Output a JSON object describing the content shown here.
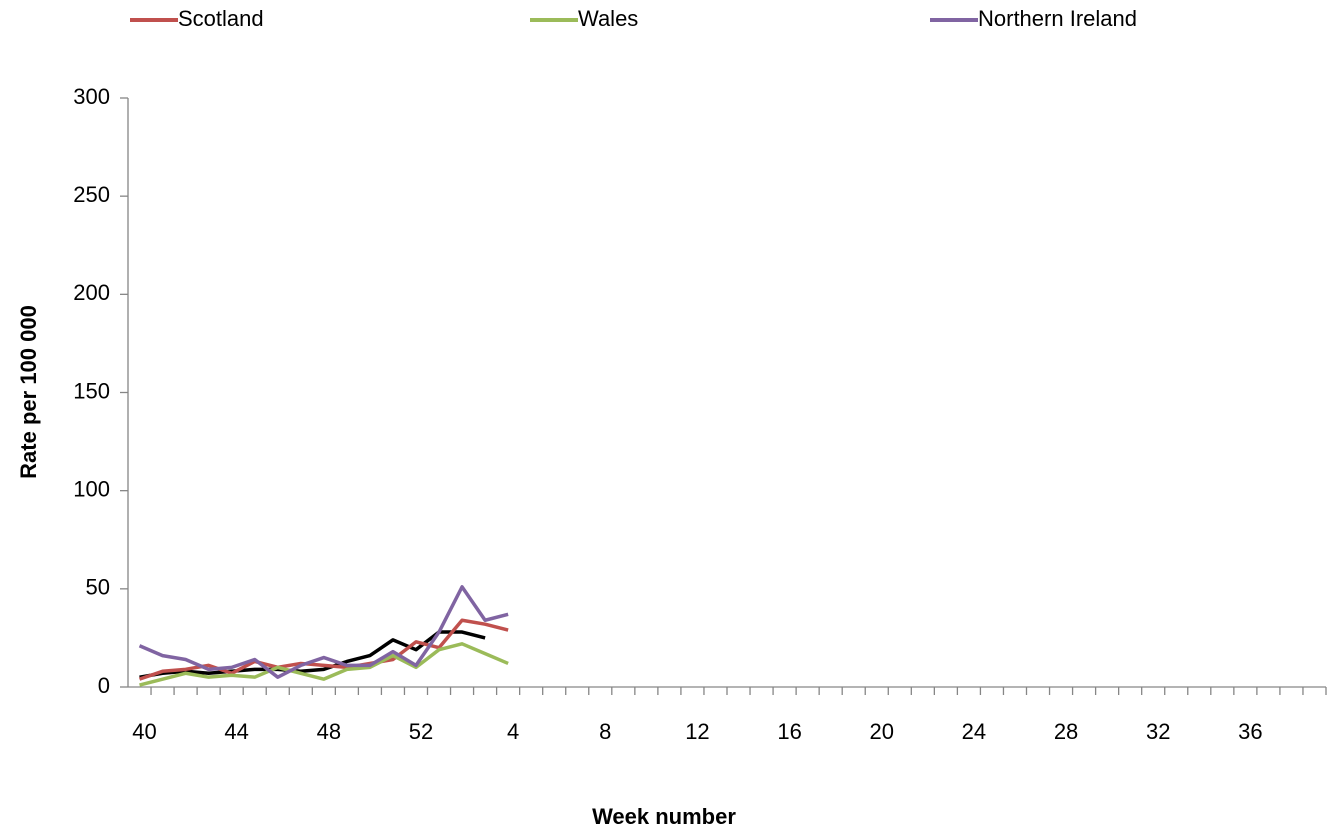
{
  "chart_data": {
    "type": "line",
    "y_label": "Rate per 100 000",
    "x_label": "Week number",
    "categories": [
      "40",
      null,
      null,
      null,
      "44",
      null,
      null,
      null,
      "48",
      null,
      null,
      null,
      "52",
      null,
      null,
      null,
      "4",
      null,
      null,
      null,
      "8",
      null,
      null,
      null,
      "12",
      null,
      null,
      null,
      "16",
      null,
      null,
      null,
      "20",
      null,
      null,
      null,
      "24",
      null,
      null,
      null,
      "28",
      null,
      null,
      null,
      "32",
      null,
      null,
      null,
      "36",
      null,
      null,
      null
    ],
    "series": [
      {
        "color": "#000000",
        "values": [
          5,
          7,
          8,
          7,
          8,
          9,
          9,
          8,
          9,
          13,
          16,
          24,
          19,
          28,
          28,
          25,
          null,
          null,
          null,
          null,
          null,
          null,
          null,
          null,
          null,
          null,
          null,
          null,
          null,
          null,
          null,
          null,
          null,
          null,
          null,
          null,
          null,
          null,
          null,
          null,
          null,
          null,
          null,
          null,
          null,
          null,
          null,
          null,
          null,
          null,
          null,
          null
        ]
      },
      {
        "name": "Scotland",
        "color": "#c0504d",
        "values": [
          4,
          8,
          9,
          11,
          7,
          13,
          10,
          12,
          11,
          10,
          12,
          14,
          23,
          20,
          34,
          32,
          29,
          null,
          null,
          null,
          null,
          null,
          null,
          null,
          null,
          null,
          null,
          null,
          null,
          null,
          null,
          null,
          null,
          null,
          null,
          null,
          null,
          null,
          null,
          null,
          null,
          null,
          null,
          null,
          null,
          null,
          null,
          null,
          null,
          null,
          null,
          null
        ]
      },
      {
        "name": "Wales",
        "color": "#9bbb59",
        "values": [
          1,
          4,
          7,
          5,
          6,
          5,
          10,
          7,
          4,
          9,
          10,
          16,
          10,
          19,
          22,
          17,
          12,
          null,
          null,
          null,
          null,
          null,
          null,
          null,
          null,
          null,
          null,
          null,
          null,
          null,
          null,
          null,
          null,
          null,
          null,
          null,
          null,
          null,
          null,
          null,
          null,
          null,
          null,
          null,
          null,
          null,
          null,
          null,
          null,
          null,
          null,
          null
        ]
      },
      {
        "name": "Northern Ireland",
        "color": "#8064a2",
        "values": [
          21,
          16,
          14,
          9,
          10,
          14,
          5,
          11,
          15,
          11,
          11,
          18,
          11,
          28,
          51,
          34,
          37,
          null,
          null,
          null,
          null,
          null,
          null,
          null,
          null,
          null,
          null,
          null,
          null,
          null,
          null,
          null,
          null,
          null,
          null,
          null,
          null,
          null,
          null,
          null,
          null,
          null,
          null,
          null,
          null,
          null,
          null,
          null,
          null,
          null,
          null,
          null
        ]
      }
    ],
    "ylim": [
      0,
      300
    ],
    "yticks": [
      0,
      50,
      100,
      150,
      200,
      250,
      300
    ],
    "grid": false
  }
}
